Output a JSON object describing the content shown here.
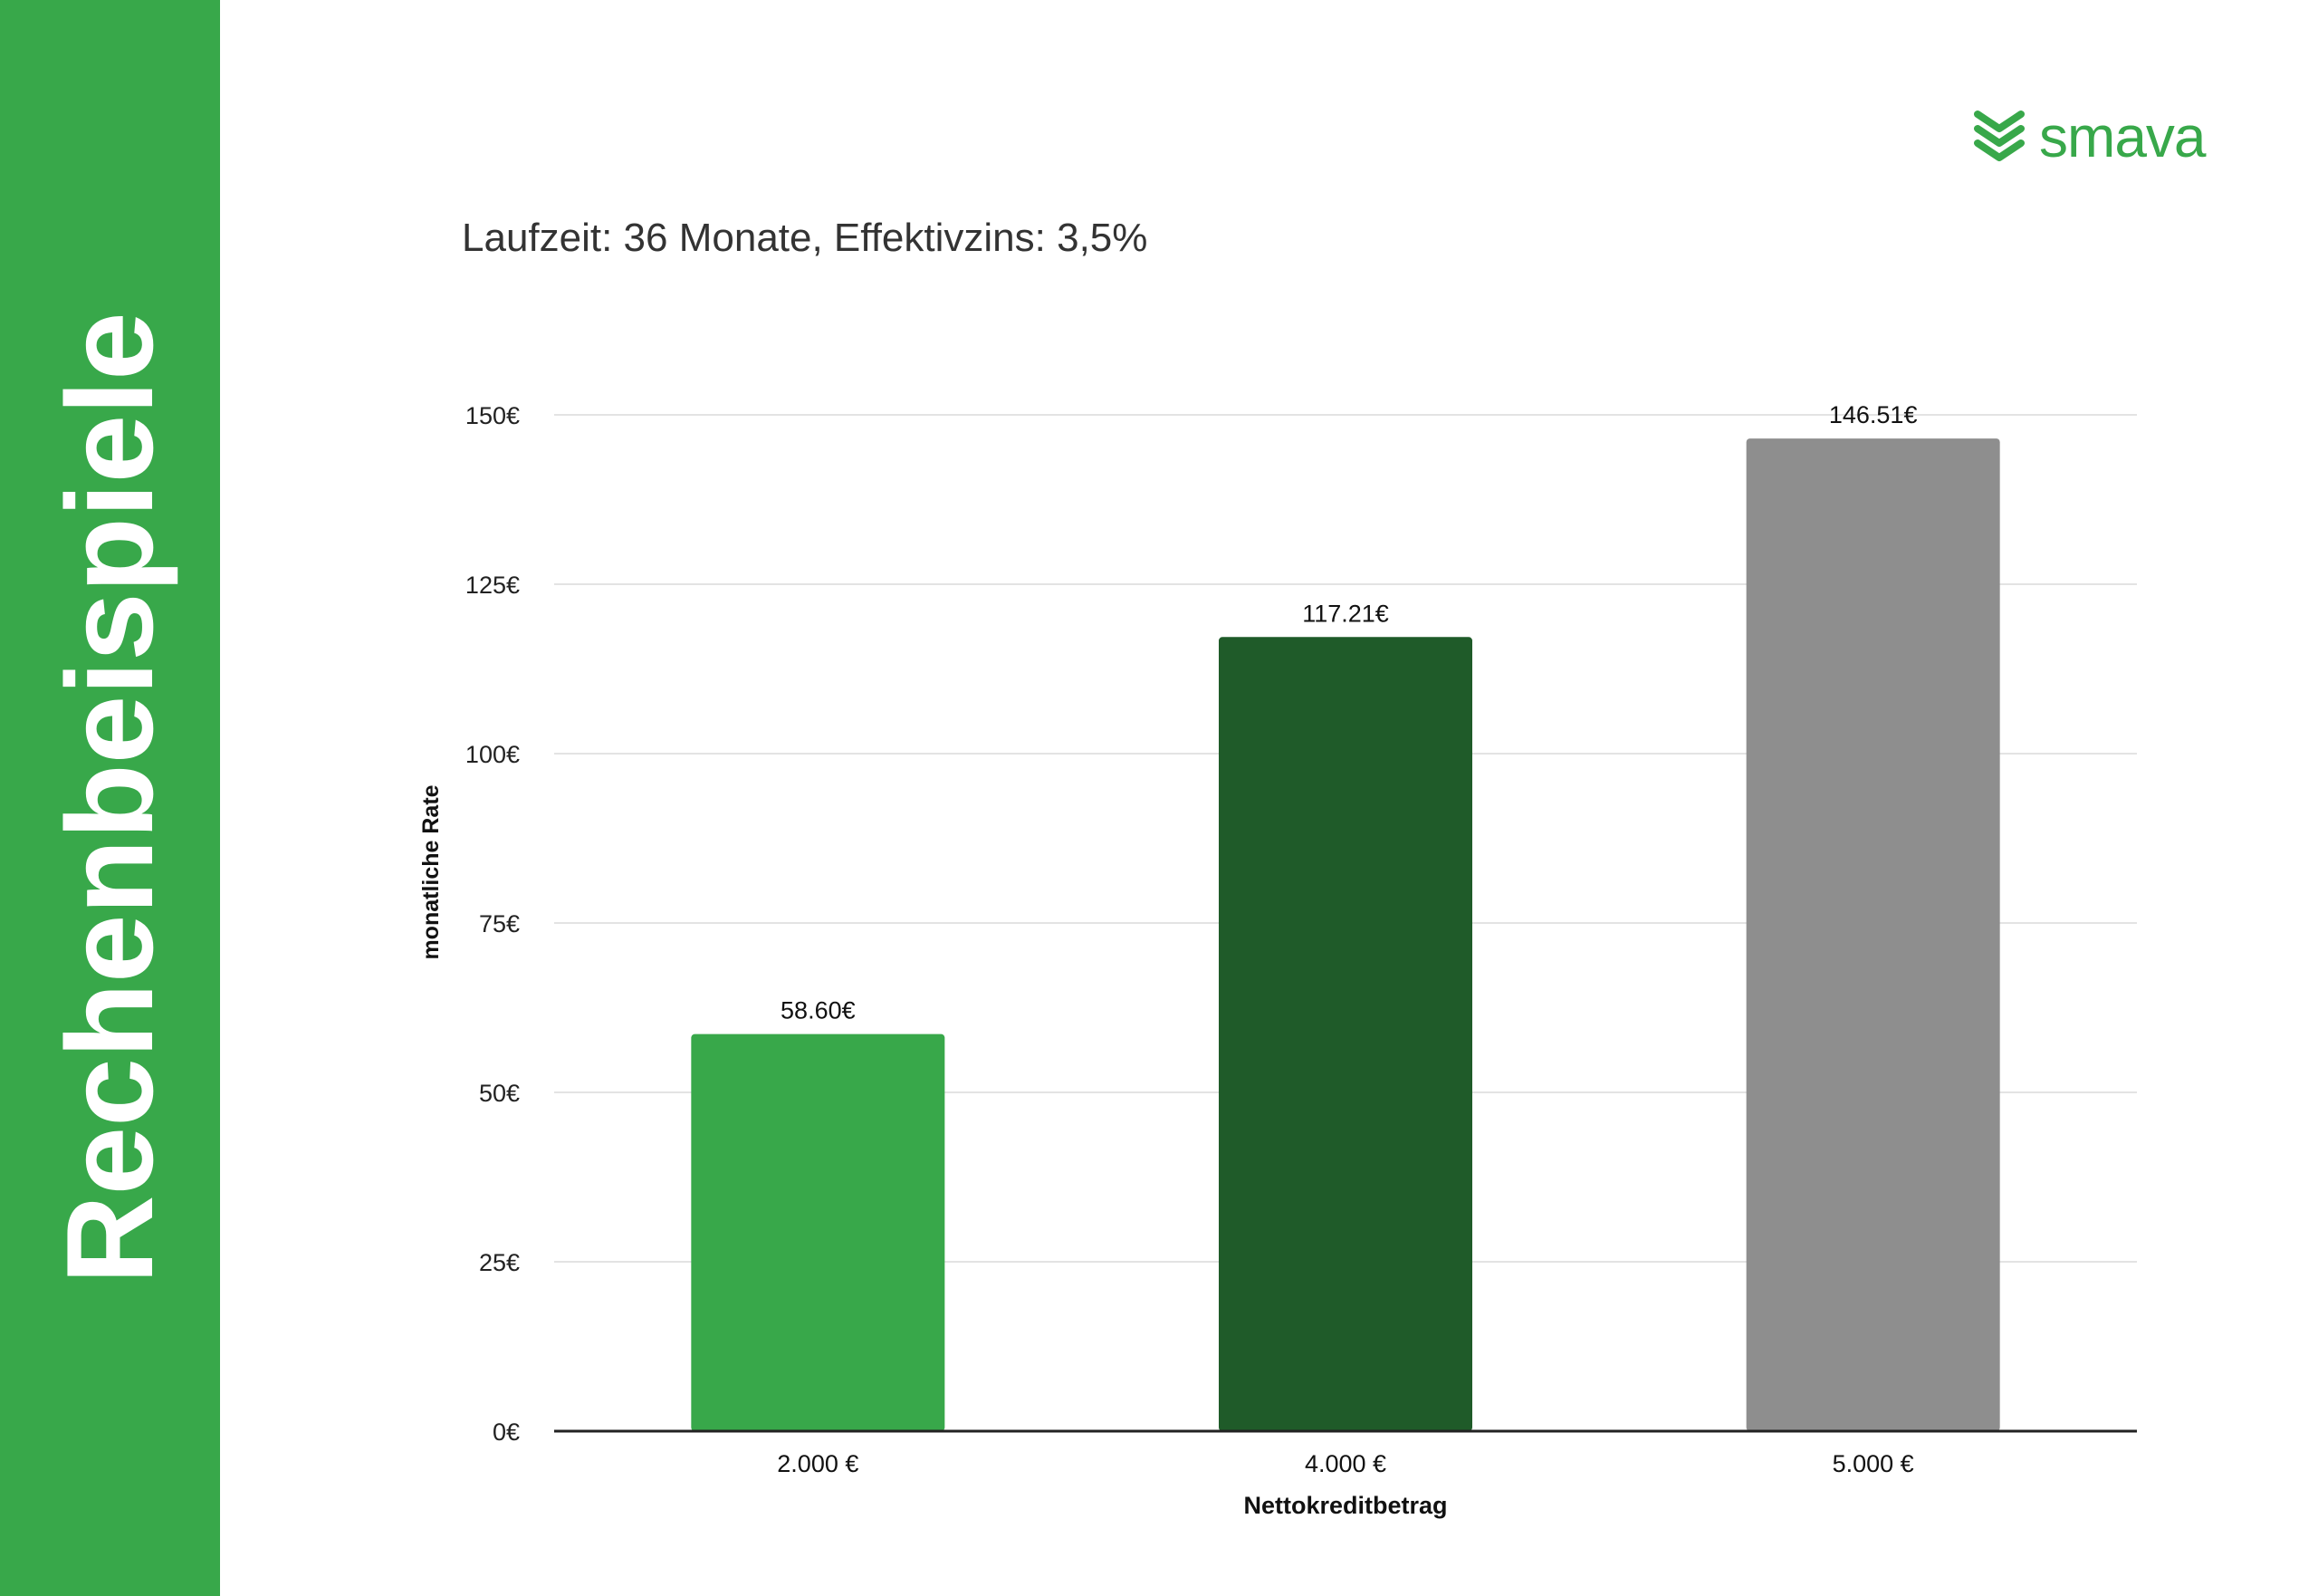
{
  "sidebar": {
    "title": "Rechenbeispiele",
    "color": "#38a84a"
  },
  "logo": {
    "text": "smava",
    "icon": "smava-chevrons-icon",
    "color": "#38a84a"
  },
  "subtitle": "Laufzeit: 36 Monate, Effektivzins: 3,5%",
  "chart_data": {
    "type": "bar",
    "categories": [
      "2.000 €",
      "4.000 €",
      "5.000 €"
    ],
    "values": [
      58.6,
      117.21,
      146.51
    ],
    "value_labels": [
      "58.60€",
      "117.21€",
      "146.51€"
    ],
    "bar_colors": [
      "#38a84a",
      "#1f5b29",
      "#8e8e8e"
    ],
    "xlabel": "Nettokreditbetrag",
    "ylabel": "monatliche Rate",
    "ylim": [
      0,
      150
    ],
    "yticks": [
      0,
      25,
      50,
      75,
      100,
      125,
      150
    ],
    "ytick_labels": [
      "0€",
      "25€",
      "50€",
      "75€",
      "100€",
      "125€",
      "150€"
    ],
    "grid": true,
    "legend": "none"
  }
}
